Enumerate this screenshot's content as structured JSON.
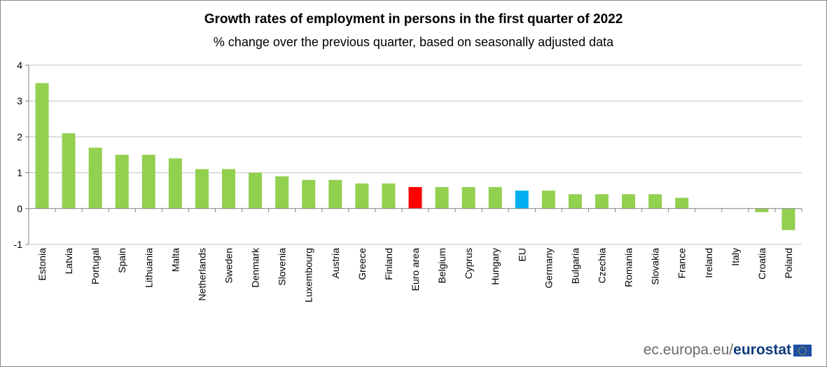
{
  "chart_data": {
    "type": "bar",
    "title": "Growth rates of employment in persons  in the first quarter of  2022",
    "subtitle": "% change over the previous  quarter,  based on seasonally  adjusted data",
    "categories": [
      "Estonia",
      "Latvia",
      "Portugal",
      "Spain",
      "Lithuania",
      "Malta",
      "Netherlands",
      "Sweden",
      "Denmark",
      "Slovenia",
      "Luxembourg",
      "Austria",
      "Greece",
      "Finland",
      "Euro area",
      "Belgium",
      "Cyprus",
      "Hungary",
      "EU",
      "Germany",
      "Bulgaria",
      "Czechia",
      "Romania",
      "Slovakia",
      "France",
      "Ireland",
      "Italy",
      "Croatia",
      "Poland"
    ],
    "values": [
      3.5,
      2.1,
      1.7,
      1.5,
      1.5,
      1.4,
      1.1,
      1.1,
      1.0,
      0.9,
      0.8,
      0.8,
      0.7,
      0.7,
      0.6,
      0.6,
      0.6,
      0.6,
      0.5,
      0.5,
      0.4,
      0.4,
      0.4,
      0.4,
      0.3,
      0.0,
      0.0,
      -0.1,
      -0.6
    ],
    "yticks": [
      "4",
      "3",
      "2",
      "1",
      "0",
      "-1"
    ],
    "ylim": [
      -1,
      4
    ],
    "grid": true,
    "colors": {
      "default": "#92d050",
      "Euro area": "#ff0000",
      "EU": "#00b0f0",
      "grid": "#c0c0c0",
      "axis": "#808080"
    }
  },
  "footer": {
    "domain": "ec.europa.eu/",
    "brand": "eurostat"
  }
}
